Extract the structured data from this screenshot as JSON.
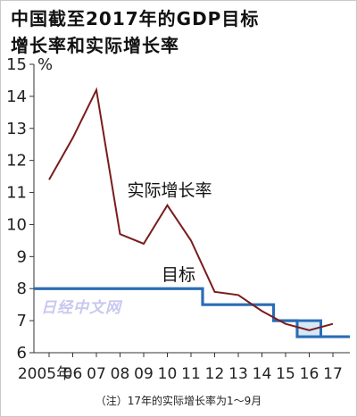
{
  "title": "中国截至2017年的GDP目标\n增长率和实际增长率",
  "note": "（注）17年的实际增长率为1～9月",
  "watermark": "日经中文网",
  "chart_data": {
    "type": "line",
    "x": [
      "2005年",
      "06",
      "07",
      "08",
      "09",
      "10",
      "11",
      "12",
      "13",
      "14",
      "15",
      "16",
      "17"
    ],
    "ylabel": "%",
    "ylim": [
      6,
      15
    ],
    "yticks": [
      "6",
      "7",
      "8",
      "9",
      "10",
      "11",
      "12",
      "13",
      "14",
      "15"
    ],
    "series": [
      {
        "name": "实际增长率",
        "color": "#7a1c1c",
        "x": [
          2005,
          2006,
          2007,
          2008,
          2009,
          2010,
          2011,
          2012,
          2013,
          2014,
          2015,
          2016,
          2017
        ],
        "values": [
          11.4,
          12.7,
          14.2,
          9.7,
          9.4,
          10.6,
          9.5,
          7.9,
          7.8,
          7.3,
          6.9,
          6.7,
          6.9
        ]
      },
      {
        "name": "目标",
        "color": "#2a6db5",
        "x": [
          2005,
          2006,
          2007,
          2008,
          2009,
          2010,
          2011,
          2012,
          2013,
          2014,
          2015,
          2016,
          2017
        ],
        "values": [
          8,
          8,
          8,
          8,
          8,
          8,
          8,
          7.5,
          7.5,
          7.5,
          7.0,
          6.5,
          6.5
        ],
        "range_2016": [
          6.5,
          7.0
        ]
      }
    ]
  }
}
